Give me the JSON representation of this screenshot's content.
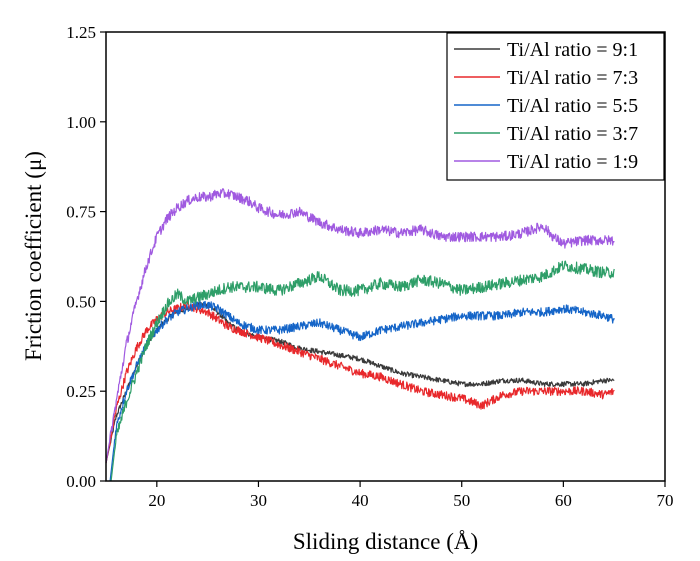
{
  "chart_data": {
    "type": "line",
    "xlabel": "Sliding distance (Å)",
    "ylabel": "Friction coefficient (μ)",
    "xlim": [
      15,
      70
    ],
    "ylim": [
      0,
      1.25
    ],
    "x_ticks": [
      "20",
      "30",
      "40",
      "50",
      "60",
      "70"
    ],
    "y_ticks": [
      "0.00",
      "0.25",
      "0.50",
      "0.75",
      "1.00",
      "1.25"
    ],
    "grid": false,
    "legend_position": "top-right",
    "series": [
      {
        "name": "Ti/Al ratio = 9:1",
        "color": "#3a3a3a",
        "noise": 0.007,
        "x": [
          15,
          16,
          17,
          18,
          19,
          20,
          21,
          22,
          23,
          24,
          25,
          26,
          27,
          28,
          29,
          30,
          32,
          34,
          36,
          38,
          40,
          42,
          44,
          46,
          48,
          50,
          52,
          54,
          56,
          58,
          60,
          62,
          64,
          65
        ],
        "y": [
          0.05,
          0.18,
          0.25,
          0.32,
          0.38,
          0.42,
          0.45,
          0.47,
          0.48,
          0.49,
          0.49,
          0.47,
          0.44,
          0.42,
          0.41,
          0.4,
          0.39,
          0.37,
          0.36,
          0.35,
          0.34,
          0.32,
          0.3,
          0.29,
          0.28,
          0.27,
          0.27,
          0.28,
          0.28,
          0.27,
          0.27,
          0.27,
          0.28,
          0.28
        ]
      },
      {
        "name": "Ti/Al ratio = 7:3",
        "color": "#e8282b",
        "noise": 0.012,
        "x": [
          15,
          16,
          17,
          18,
          19,
          20,
          21,
          22,
          23,
          24,
          25,
          26,
          27,
          28,
          30,
          32,
          34,
          36,
          38,
          40,
          42,
          44,
          46,
          48,
          50,
          52,
          54,
          56,
          58,
          60,
          62,
          64,
          65
        ],
        "y": [
          0.05,
          0.2,
          0.3,
          0.37,
          0.42,
          0.45,
          0.47,
          0.48,
          0.49,
          0.48,
          0.47,
          0.45,
          0.43,
          0.42,
          0.4,
          0.38,
          0.36,
          0.34,
          0.32,
          0.3,
          0.29,
          0.27,
          0.25,
          0.24,
          0.23,
          0.21,
          0.24,
          0.25,
          0.25,
          0.25,
          0.25,
          0.24,
          0.25
        ]
      },
      {
        "name": "Ti/Al ratio = 5:5",
        "color": "#1565c8",
        "noise": 0.012,
        "x": [
          15.4,
          16,
          17,
          18,
          19,
          20,
          21,
          22,
          23,
          24,
          25,
          26,
          27,
          28,
          30,
          32,
          34,
          36,
          38,
          40,
          42,
          44,
          46,
          48,
          50,
          52,
          54,
          56,
          58,
          60,
          62,
          64,
          65
        ],
        "y": [
          0.0,
          0.15,
          0.25,
          0.32,
          0.38,
          0.42,
          0.45,
          0.47,
          0.48,
          0.49,
          0.49,
          0.48,
          0.46,
          0.44,
          0.42,
          0.42,
          0.43,
          0.44,
          0.42,
          0.4,
          0.42,
          0.43,
          0.44,
          0.45,
          0.46,
          0.46,
          0.46,
          0.47,
          0.47,
          0.48,
          0.47,
          0.46,
          0.45
        ]
      },
      {
        "name": "Ti/Al ratio = 3:7",
        "color": "#2e9e68",
        "noise": 0.016,
        "x": [
          15.5,
          16,
          17,
          18,
          19,
          20,
          21,
          22,
          23,
          24,
          25,
          26,
          27,
          28,
          30,
          32,
          34,
          36,
          38,
          40,
          42,
          44,
          46,
          48,
          50,
          52,
          54,
          56,
          58,
          60,
          62,
          64,
          65
        ],
        "y": [
          0.0,
          0.12,
          0.22,
          0.3,
          0.38,
          0.44,
          0.49,
          0.52,
          0.5,
          0.51,
          0.52,
          0.53,
          0.54,
          0.54,
          0.54,
          0.53,
          0.55,
          0.57,
          0.53,
          0.53,
          0.55,
          0.54,
          0.56,
          0.55,
          0.53,
          0.54,
          0.55,
          0.56,
          0.57,
          0.6,
          0.59,
          0.58,
          0.58
        ]
      },
      {
        "name": "Ti/Al ratio = 1:9",
        "color": "#a05ae0",
        "noise": 0.014,
        "x": [
          15,
          16,
          17,
          18,
          19,
          20,
          21,
          22,
          23,
          24,
          25,
          26,
          27,
          28,
          29,
          30,
          32,
          34,
          36,
          38,
          40,
          42,
          44,
          46,
          48,
          50,
          52,
          54,
          56,
          58,
          59,
          60,
          62,
          64,
          65
        ],
        "y": [
          0.05,
          0.22,
          0.38,
          0.5,
          0.6,
          0.68,
          0.73,
          0.76,
          0.78,
          0.79,
          0.79,
          0.8,
          0.8,
          0.79,
          0.78,
          0.76,
          0.74,
          0.75,
          0.72,
          0.7,
          0.69,
          0.7,
          0.69,
          0.7,
          0.68,
          0.68,
          0.68,
          0.68,
          0.69,
          0.71,
          0.68,
          0.66,
          0.67,
          0.67,
          0.67
        ]
      }
    ]
  }
}
